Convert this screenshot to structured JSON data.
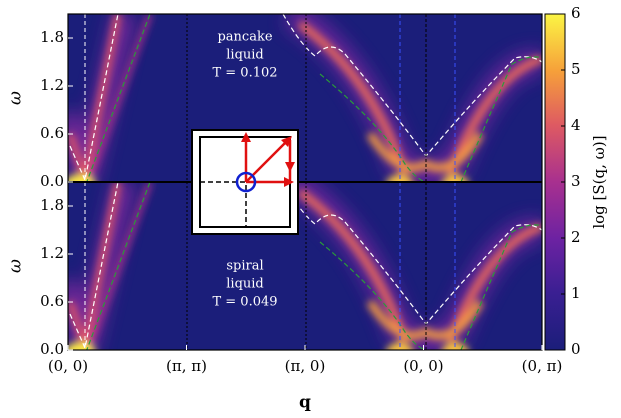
{
  "chart_data": {
    "type": "heatmap",
    "panels": [
      {
        "annotation": [
          "pancake",
          "liquid",
          "T = 0.102"
        ],
        "ylabel": "ω",
        "ylim": [
          0,
          2.1
        ],
        "yticks": [
          {
            "value": 0,
            "label": "0.0"
          },
          {
            "value": 0.6,
            "label": "0.6"
          },
          {
            "value": 1.2,
            "label": "1.2"
          },
          {
            "value": 1.8,
            "label": "1.8"
          }
        ]
      },
      {
        "annotation": [
          "spiral",
          "liquid",
          "T = 0.049"
        ],
        "ylabel": "ω",
        "ylim": [
          0,
          2.1
        ],
        "yticks": [
          {
            "value": 0,
            "label": "0.0"
          },
          {
            "value": 0.6,
            "label": "0.6"
          },
          {
            "value": 1.2,
            "label": "1.2"
          },
          {
            "value": 1.8,
            "label": "1.8"
          }
        ]
      }
    ],
    "xlabel": "q",
    "xlim": [
      0,
      4
    ],
    "xticks": [
      {
        "value": 0,
        "label": "(0, 0)"
      },
      {
        "value": 1,
        "label": "(π, π)"
      },
      {
        "value": 2,
        "label": "(π, 0)"
      },
      {
        "value": 3,
        "label": "(0, 0)"
      },
      {
        "value": 4,
        "label": "(0, π)"
      }
    ],
    "colorbar_label": "log [S(q, ω)]",
    "clim": [
      0,
      6
    ],
    "cticks": [
      0,
      1,
      2,
      3,
      4,
      5,
      6
    ]
  }
}
